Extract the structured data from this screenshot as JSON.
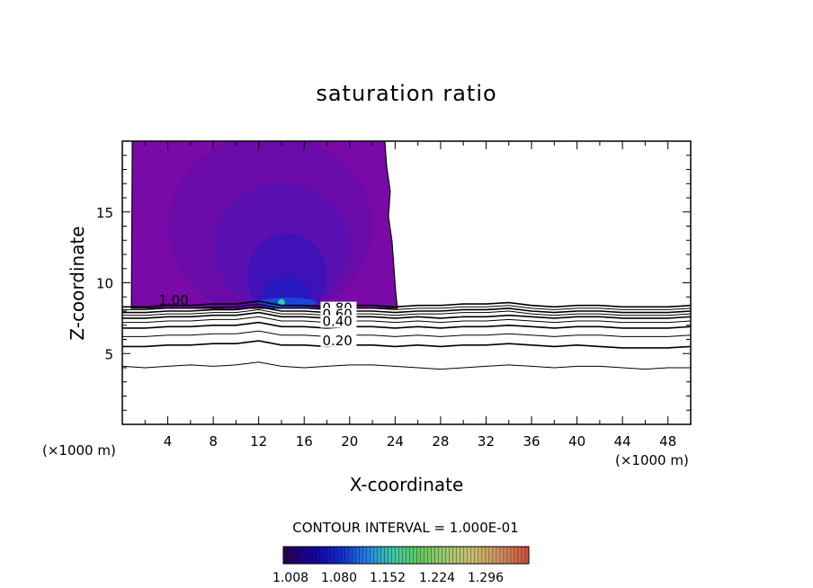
{
  "chart_data": {
    "type": "contour",
    "title": "saturation ratio",
    "xlabel": "X-coordinate",
    "ylabel": "Z-coordinate",
    "x_unit": "(×1000 m)",
    "y_unit": "(×1000 m)",
    "xlim": [
      0,
      50
    ],
    "ylim": [
      0,
      20
    ],
    "x_ticks": [
      "4",
      "8",
      "12",
      "16",
      "20",
      "24",
      "28",
      "32",
      "36",
      "40",
      "44",
      "48"
    ],
    "y_ticks": [
      "5",
      "10",
      "15"
    ],
    "contour_interval_text": "CONTOUR INTERVAL = 1.000E-01",
    "contour_labels": [
      "1.00",
      "0.80",
      "0.60",
      "0.40",
      "0.20"
    ],
    "colorbar": {
      "tick_labels": [
        "1.008",
        "1.080",
        "1.152",
        "1.224",
        "1.296"
      ],
      "colors": [
        "#2a0050",
        "#1400a0",
        "#1030d0",
        "#2a90e0",
        "#40c8a0",
        "#60c860",
        "#a0c870",
        "#c8c070",
        "#d09060",
        "#d05040"
      ]
    },
    "contour_lines": [
      {
        "level": 0.1,
        "z_levels": [
          4.1,
          4.0,
          4.1,
          4.2,
          4.1,
          4.2,
          4.4,
          4.1,
          4.0,
          4.1,
          4.2,
          4.2,
          4.1,
          4.0,
          3.9,
          4.0,
          4.1,
          4.2,
          4.1,
          4.0,
          4.1,
          4.1,
          4.0,
          3.9,
          4.0,
          4.0
        ]
      },
      {
        "level": 0.2,
        "z_levels": [
          5.5,
          5.5,
          5.6,
          5.6,
          5.7,
          5.7,
          5.9,
          5.6,
          5.6,
          5.5,
          5.6,
          5.6,
          5.5,
          5.6,
          5.5,
          5.6,
          5.6,
          5.7,
          5.6,
          5.5,
          5.6,
          5.5,
          5.4,
          5.4,
          5.4,
          5.5
        ]
      },
      {
        "level": 0.3,
        "z_levels": [
          6.2,
          6.2,
          6.3,
          6.3,
          6.4,
          6.4,
          6.6,
          6.3,
          6.3,
          6.2,
          6.3,
          6.3,
          6.2,
          6.3,
          6.2,
          6.3,
          6.3,
          6.4,
          6.3,
          6.2,
          6.3,
          6.3,
          6.2,
          6.2,
          6.2,
          6.3
        ]
      },
      {
        "level": 0.4,
        "z_levels": [
          6.8,
          6.8,
          6.9,
          6.9,
          7.0,
          7.0,
          7.2,
          6.9,
          6.9,
          6.8,
          6.9,
          6.9,
          6.8,
          6.9,
          6.8,
          6.9,
          6.9,
          7.0,
          6.9,
          6.8,
          6.9,
          6.9,
          6.8,
          6.8,
          6.8,
          6.9
        ]
      },
      {
        "level": 0.5,
        "z_levels": [
          7.2,
          7.2,
          7.3,
          7.3,
          7.4,
          7.4,
          7.6,
          7.3,
          7.3,
          7.2,
          7.3,
          7.3,
          7.2,
          7.3,
          7.2,
          7.3,
          7.3,
          7.4,
          7.3,
          7.2,
          7.3,
          7.3,
          7.2,
          7.2,
          7.2,
          7.3
        ]
      },
      {
        "level": 0.6,
        "z_levels": [
          7.5,
          7.5,
          7.6,
          7.6,
          7.7,
          7.7,
          7.9,
          7.6,
          7.6,
          7.5,
          7.6,
          7.6,
          7.5,
          7.6,
          7.5,
          7.6,
          7.6,
          7.7,
          7.6,
          7.5,
          7.6,
          7.6,
          7.5,
          7.5,
          7.5,
          7.6
        ]
      },
      {
        "level": 0.7,
        "z_levels": [
          7.7,
          7.7,
          7.8,
          7.8,
          7.9,
          7.9,
          8.1,
          7.8,
          7.8,
          7.7,
          7.8,
          7.8,
          7.7,
          7.8,
          7.8,
          7.9,
          7.9,
          8.0,
          7.8,
          7.7,
          7.8,
          7.8,
          7.7,
          7.7,
          7.7,
          7.8
        ]
      },
      {
        "level": 0.8,
        "z_levels": [
          7.9,
          7.9,
          8.0,
          8.0,
          8.1,
          8.1,
          8.3,
          8.0,
          8.0,
          7.9,
          8.0,
          8.0,
          7.9,
          8.0,
          8.0,
          8.1,
          8.1,
          8.2,
          8.0,
          7.9,
          8.0,
          8.0,
          7.9,
          7.9,
          7.9,
          8.0
        ]
      },
      {
        "level": 0.9,
        "z_levels": [
          8.1,
          8.1,
          8.2,
          8.2,
          8.3,
          8.3,
          8.5,
          8.2,
          8.2,
          8.1,
          8.2,
          8.2,
          8.1,
          8.2,
          8.2,
          8.3,
          8.3,
          8.4,
          8.2,
          8.1,
          8.2,
          8.2,
          8.1,
          8.1,
          8.1,
          8.2
        ]
      },
      {
        "level": 1.0,
        "z_levels": [
          8.3,
          8.3,
          8.4,
          8.4,
          8.5,
          8.5,
          8.7,
          8.4,
          8.4,
          8.3,
          8.4,
          8.4,
          8.3,
          8.4,
          8.4,
          8.5,
          8.5,
          8.6,
          8.4,
          8.3,
          8.4,
          8.4,
          8.3,
          8.3,
          8.3,
          8.4
        ]
      }
    ],
    "supersaturated_region": {
      "x_range": [
        0.8,
        24.2
      ],
      "z_range": [
        8.2,
        20
      ],
      "base_color": "#7a0aa8",
      "core": [
        {
          "x_center": 13.0,
          "z_center": 14.0,
          "x_half": 9.0,
          "z_half": 6.5,
          "color": "#6a0aa8"
        },
        {
          "x_center": 14.0,
          "z_center": 12.5,
          "x_half": 6.0,
          "z_half": 4.5,
          "color": "#5a10b0"
        },
        {
          "x_center": 14.5,
          "z_center": 10.5,
          "x_half": 3.5,
          "z_half": 3.0,
          "color": "#4010b8"
        },
        {
          "x_center": 14.5,
          "z_center": 9.2,
          "x_half": 2.0,
          "z_half": 1.2,
          "color": "#2818c0"
        },
        {
          "x_center": 14.5,
          "z_center": 8.6,
          "x_half": 2.6,
          "z_half": 0.35,
          "color": "#1848d8"
        },
        {
          "x_center": 14.0,
          "z_center": 8.6,
          "x_half": 0.3,
          "z_half": 0.25,
          "color": "#30d0a0"
        }
      ]
    }
  }
}
